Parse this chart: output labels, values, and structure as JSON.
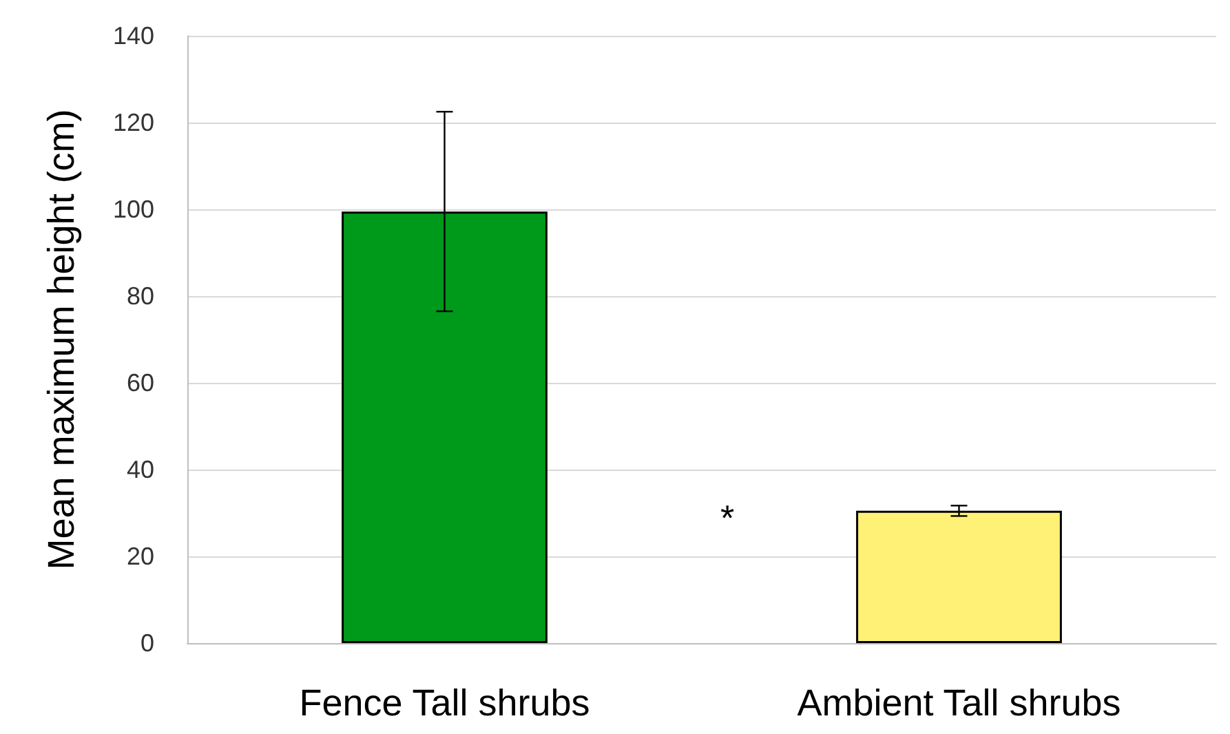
{
  "chart_data": {
    "type": "bar",
    "categories": [
      "Fence Tall shrubs",
      "Ambient Tall shrubs"
    ],
    "values": [
      99.5,
      30.5
    ],
    "colors": [
      "#009a1a",
      "#fff176"
    ],
    "errors": [
      23,
      1.2
    ],
    "ylabel": "Mean maximum height (cm)",
    "ylim": [
      0,
      140
    ],
    "yticks": [
      0,
      20,
      40,
      60,
      80,
      100,
      120,
      140
    ],
    "grid": "y",
    "annotations": [
      "*"
    ]
  }
}
